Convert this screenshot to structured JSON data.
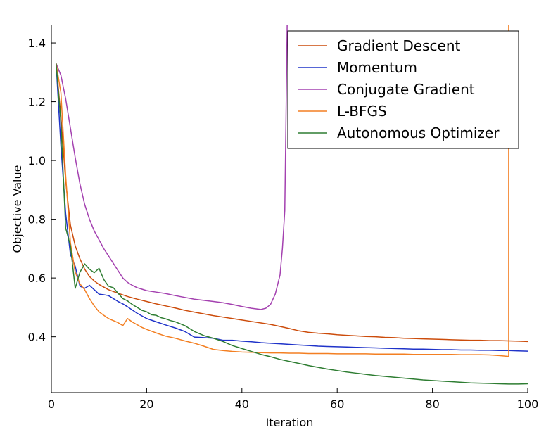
{
  "chart_data": {
    "type": "line",
    "title": "",
    "xlabel": "Iteration",
    "ylabel": "Objective Value",
    "xlim": [
      0,
      100
    ],
    "ylim": [
      0.21,
      1.46
    ],
    "xticks": [
      "0",
      "20",
      "40",
      "60",
      "80",
      "100"
    ],
    "xtick_values": [
      0,
      20,
      40,
      60,
      80,
      100
    ],
    "yticks": [
      "0.4",
      "0.6",
      "0.8",
      "1.0",
      "1.2",
      "1.4"
    ],
    "ytick_values": [
      0.4,
      0.6,
      0.8,
      1.0,
      1.2,
      1.4
    ],
    "grid": false,
    "legend_position": "top-right",
    "series": [
      {
        "name": "Gradient Descent",
        "color": "#cc4c0b",
        "x": [
          1,
          2,
          3,
          4,
          5,
          6,
          7,
          8,
          9,
          10,
          12,
          14,
          16,
          18,
          20,
          22,
          24,
          26,
          28,
          30,
          32,
          34,
          36,
          38,
          40,
          42,
          44,
          46,
          48,
          50,
          52,
          54,
          56,
          58,
          60,
          62,
          64,
          66,
          68,
          70,
          72,
          74,
          76,
          78,
          80,
          82,
          84,
          86,
          88,
          90,
          92,
          94,
          96,
          98,
          100
        ],
        "y": [
          1.33,
          1.15,
          0.93,
          0.78,
          0.71,
          0.665,
          0.63,
          0.605,
          0.59,
          0.578,
          0.56,
          0.548,
          0.537,
          0.528,
          0.52,
          0.512,
          0.505,
          0.498,
          0.49,
          0.484,
          0.478,
          0.472,
          0.467,
          0.462,
          0.457,
          0.452,
          0.447,
          0.442,
          0.435,
          0.428,
          0.42,
          0.415,
          0.412,
          0.41,
          0.407,
          0.405,
          0.403,
          0.401,
          0.4,
          0.398,
          0.397,
          0.395,
          0.394,
          0.393,
          0.392,
          0.391,
          0.39,
          0.389,
          0.388,
          0.388,
          0.387,
          0.387,
          0.386,
          0.385,
          0.384
        ]
      },
      {
        "name": "Momentum",
        "color": "#1f33c9",
        "x": [
          1,
          2,
          3,
          4,
          5,
          6,
          7,
          8,
          9,
          10,
          11,
          12,
          13,
          14,
          15,
          16,
          18,
          20,
          22,
          24,
          26,
          28,
          30,
          32,
          34,
          36,
          38,
          40,
          42,
          44,
          46,
          48,
          50,
          52,
          54,
          56,
          58,
          60,
          62,
          64,
          66,
          68,
          70,
          72,
          74,
          76,
          78,
          80,
          82,
          84,
          86,
          88,
          90,
          92,
          94,
          96,
          98,
          100
        ],
        "y": [
          1.33,
          1.05,
          0.82,
          0.68,
          0.64,
          0.572,
          0.565,
          0.575,
          0.56,
          0.545,
          0.543,
          0.54,
          0.53,
          0.52,
          0.512,
          0.502,
          0.48,
          0.462,
          0.451,
          0.44,
          0.43,
          0.418,
          0.399,
          0.397,
          0.395,
          0.388,
          0.388,
          0.385,
          0.383,
          0.38,
          0.378,
          0.376,
          0.374,
          0.372,
          0.37,
          0.368,
          0.367,
          0.366,
          0.365,
          0.364,
          0.363,
          0.362,
          0.361,
          0.36,
          0.359,
          0.358,
          0.358,
          0.357,
          0.356,
          0.356,
          0.355,
          0.355,
          0.354,
          0.354,
          0.353,
          0.353,
          0.352,
          0.351
        ]
      },
      {
        "name": "Conjugate Gradient",
        "color": "#a441b0",
        "x": [
          1,
          2,
          3,
          4,
          5,
          6,
          7,
          8,
          9,
          10,
          11,
          12,
          13,
          14,
          15,
          16,
          17,
          18,
          19,
          20,
          22,
          24,
          26,
          28,
          30,
          32,
          34,
          36,
          38,
          40,
          42,
          43,
          44,
          45,
          46,
          47,
          48,
          48.5,
          49,
          49.5
        ],
        "y": [
          1.33,
          1.29,
          1.21,
          1.11,
          1.01,
          0.92,
          0.85,
          0.8,
          0.76,
          0.73,
          0.7,
          0.675,
          0.65,
          0.625,
          0.6,
          0.585,
          0.575,
          0.567,
          0.562,
          0.557,
          0.552,
          0.547,
          0.54,
          0.534,
          0.528,
          0.524,
          0.52,
          0.516,
          0.51,
          0.503,
          0.497,
          0.495,
          0.493,
          0.497,
          0.51,
          0.545,
          0.61,
          0.7,
          0.83,
          1.46
        ]
      },
      {
        "name": "L-BFGS",
        "color": "#f37f22",
        "x": [
          1,
          2,
          3,
          4,
          5,
          6,
          7,
          8,
          9,
          10,
          11,
          12,
          13,
          14,
          15,
          16,
          17,
          18,
          19,
          20,
          22,
          24,
          26,
          28,
          30,
          32,
          34,
          36,
          38,
          40,
          42,
          44,
          46,
          48,
          50,
          52,
          54,
          56,
          58,
          60,
          62,
          64,
          66,
          68,
          70,
          72,
          74,
          76,
          78,
          80,
          82,
          84,
          86,
          88,
          90,
          92,
          94,
          96,
          96,
          96
        ],
        "y": [
          1.33,
          1.23,
          0.95,
          0.72,
          0.62,
          0.58,
          0.56,
          0.53,
          0.505,
          0.485,
          0.473,
          0.462,
          0.455,
          0.448,
          0.438,
          0.462,
          0.45,
          0.441,
          0.432,
          0.425,
          0.413,
          0.402,
          0.395,
          0.386,
          0.378,
          0.368,
          0.357,
          0.353,
          0.35,
          0.348,
          0.347,
          0.346,
          0.345,
          0.345,
          0.344,
          0.344,
          0.343,
          0.343,
          0.343,
          0.342,
          0.342,
          0.342,
          0.342,
          0.341,
          0.341,
          0.341,
          0.341,
          0.34,
          0.34,
          0.34,
          0.34,
          0.34,
          0.339,
          0.339,
          0.339,
          0.338,
          0.336,
          0.333,
          0.333,
          1.46
        ]
      },
      {
        "name": "Autonomous Optimizer",
        "color": "#2e7d32",
        "x": [
          1,
          2,
          3,
          4,
          5,
          6,
          7,
          8,
          9,
          10,
          11,
          12,
          13,
          14,
          15,
          16,
          17,
          18,
          19,
          20,
          21,
          22,
          23,
          24,
          25,
          26,
          28,
          30,
          32,
          34,
          36,
          38,
          40,
          42,
          44,
          46,
          48,
          50,
          52,
          54,
          56,
          58,
          60,
          62,
          64,
          66,
          68,
          70,
          72,
          74,
          76,
          78,
          80,
          82,
          84,
          86,
          88,
          90,
          92,
          94,
          96,
          98,
          100
        ],
        "y": [
          1.33,
          1.13,
          0.77,
          0.71,
          0.565,
          0.62,
          0.648,
          0.63,
          0.618,
          0.633,
          0.595,
          0.572,
          0.567,
          0.548,
          0.53,
          0.522,
          0.51,
          0.5,
          0.49,
          0.485,
          0.475,
          0.473,
          0.465,
          0.461,
          0.455,
          0.451,
          0.438,
          0.418,
          0.404,
          0.395,
          0.384,
          0.37,
          0.36,
          0.35,
          0.34,
          0.332,
          0.323,
          0.316,
          0.309,
          0.302,
          0.296,
          0.29,
          0.285,
          0.28,
          0.276,
          0.272,
          0.268,
          0.265,
          0.262,
          0.259,
          0.256,
          0.253,
          0.251,
          0.249,
          0.247,
          0.245,
          0.243,
          0.242,
          0.241,
          0.24,
          0.239,
          0.239,
          0.24
        ]
      }
    ]
  }
}
